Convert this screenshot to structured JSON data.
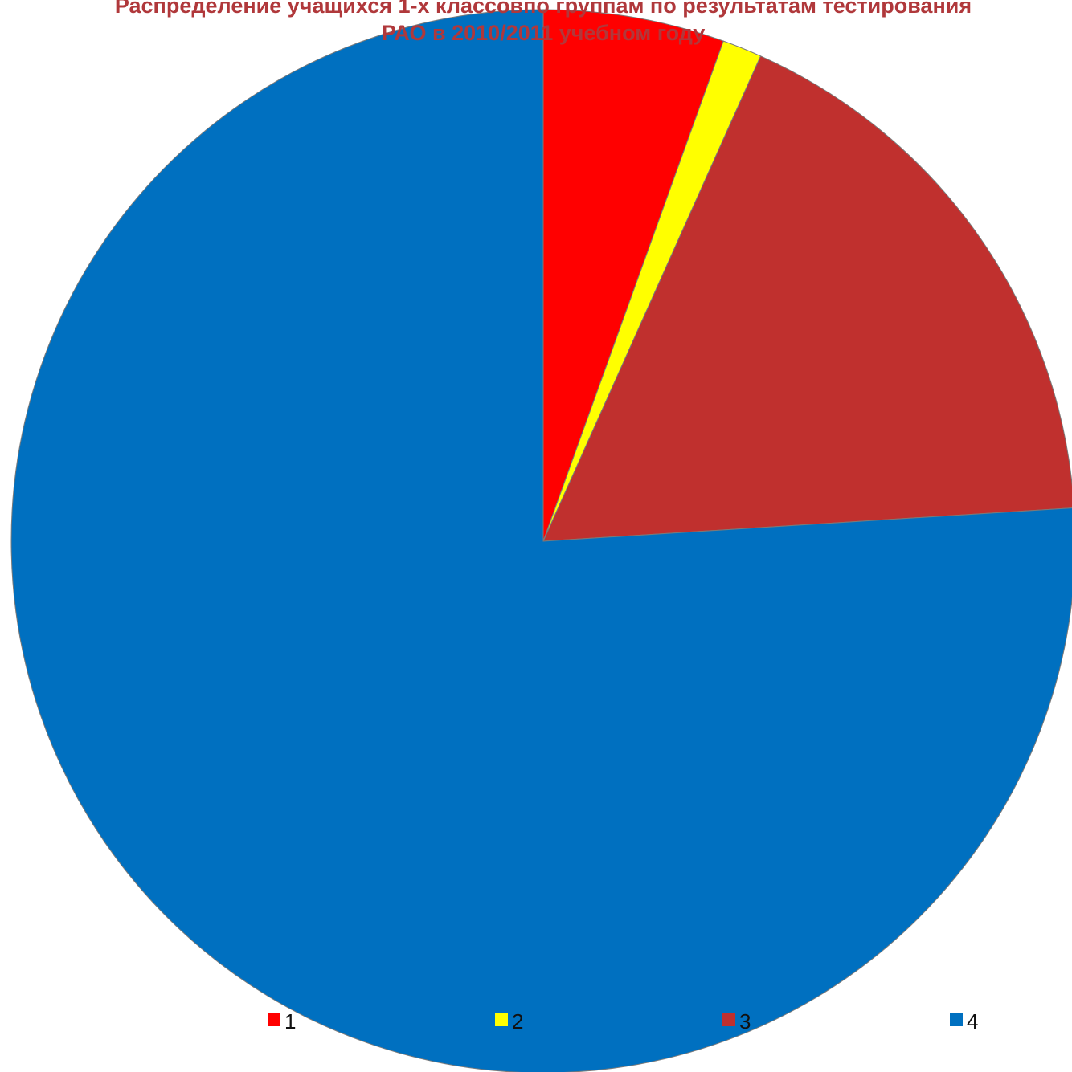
{
  "chart_data": {
    "type": "pie",
    "title_lines": [
      "Распределение учащихся 1-х классовпо группам по результатам тестирования",
      "РАО в 2010/2011 учебном году"
    ],
    "categories": [
      "1",
      "2",
      "3",
      "4"
    ],
    "values": [
      5.5,
      1.2,
      17.3,
      76.0
    ],
    "colors": [
      "#FF0000",
      "#FFFF00",
      "#C0302E",
      "#0070C0"
    ],
    "start_angle_deg": 0,
    "direction": "clockwise",
    "legend_position": "bottom"
  }
}
